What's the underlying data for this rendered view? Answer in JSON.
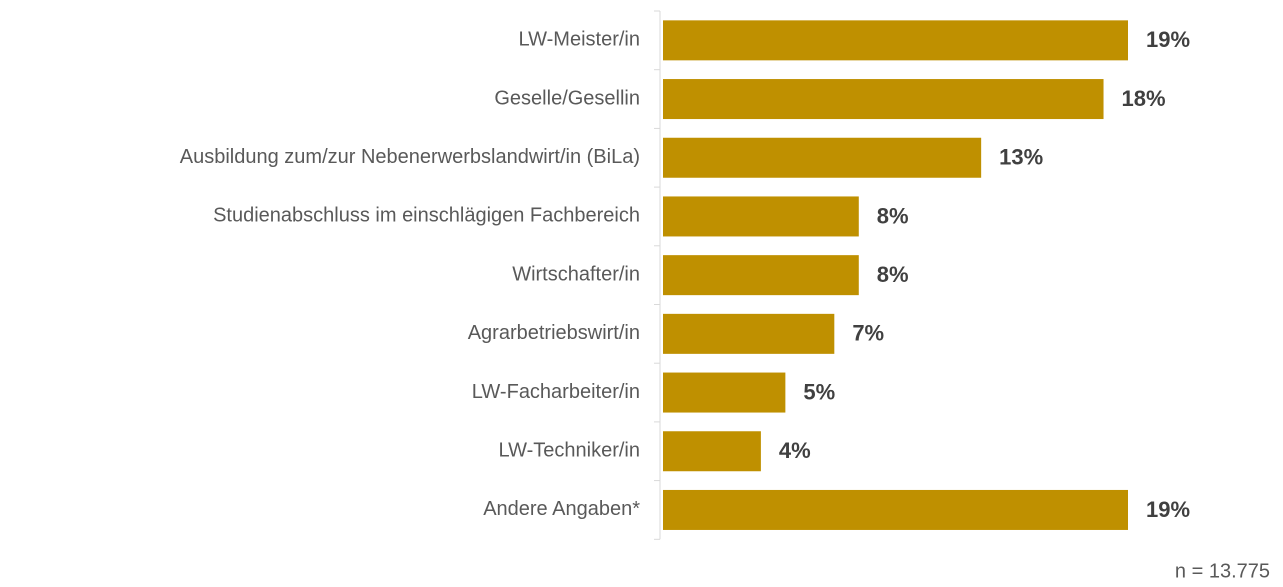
{
  "chart_data": {
    "type": "bar",
    "orientation": "horizontal",
    "categories": [
      "LW-Meister/in",
      "Geselle/Gesellin",
      "Ausbildung zum/zur Nebenerwerbslandwirt/in (BiLa)",
      "Studienabschluss im einschlägigen Fachbereich",
      "Wirtschafter/in",
      "Agrarbetriebswirt/in",
      "LW-Facharbeiter/in",
      "LW-Techniker/in",
      "Andere Angaben*"
    ],
    "values": [
      19,
      18,
      13,
      8,
      8,
      7,
      5,
      4,
      19
    ],
    "value_labels": [
      "19%",
      "18%",
      "13%",
      "8%",
      "8%",
      "7%",
      "5%",
      "4%",
      "19%"
    ],
    "color": "#bf9000",
    "note": "n = 13.775"
  }
}
